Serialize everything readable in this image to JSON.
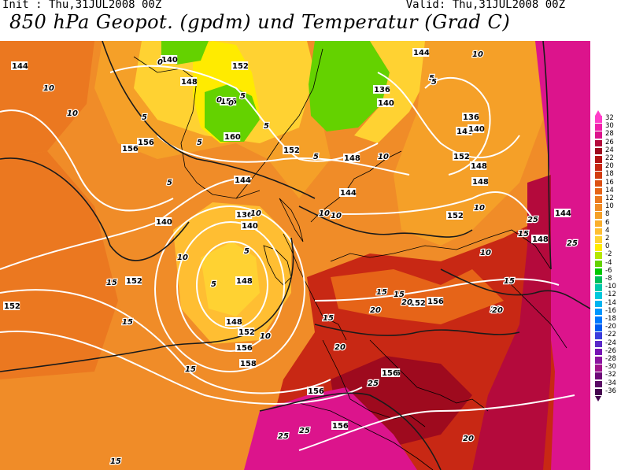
{
  "header": {
    "init": "Init : Thu,31JUL2008 00Z",
    "valid": "Valid: Thu,31JUL2008 00Z",
    "title": "850 hPa Geopot. (gpdm) und Temperatur (Grad C)"
  },
  "map": {
    "geopotential_labels": [
      "144",
      "140",
      "148",
      "152",
      "156",
      "160",
      "136",
      "140",
      "144",
      "148",
      "152",
      "156",
      "156",
      "152",
      "148",
      "144",
      "140",
      "136",
      "140",
      "144",
      "148",
      "152",
      "156",
      "158",
      "156",
      "156",
      "152",
      "148",
      "140",
      "152",
      "148",
      "136",
      "140",
      "144",
      "148",
      "152",
      "152",
      "156",
      "156",
      "156"
    ],
    "temperature_labels": [
      "10",
      "10",
      "5",
      "0",
      "5",
      "0",
      "5",
      "10",
      "5",
      "5",
      "10",
      "10",
      "10",
      "5",
      "5",
      "10",
      "10",
      "5",
      "10",
      "15",
      "15",
      "15",
      "15",
      "15",
      "20",
      "20",
      "25",
      "25",
      "25",
      "10",
      "15",
      "15",
      "20",
      "20",
      "15",
      "25",
      "25",
      "20",
      "15",
      "20",
      "10",
      "5",
      "5",
      "0"
    ]
  },
  "legend": {
    "values": [
      "32",
      "30",
      "28",
      "26",
      "24",
      "22",
      "20",
      "18",
      "16",
      "14",
      "12",
      "10",
      "8",
      "6",
      "4",
      "2",
      "0",
      "-2",
      "-4",
      "-6",
      "-8",
      "-10",
      "-12",
      "-14",
      "-16",
      "-18",
      "-20",
      "-22",
      "-24",
      "-26",
      "-28",
      "-30",
      "-32",
      "-34",
      "-36"
    ],
    "colors": [
      "#ff3cc8",
      "#f01eaa",
      "#dc148c",
      "#b40a3c",
      "#9e0a1e",
      "#b41414",
      "#c82814",
      "#d23c10",
      "#dc5014",
      "#e66418",
      "#eb7820",
      "#f08c28",
      "#f5a028",
      "#faaf2d",
      "#ffbe32",
      "#ffd232",
      "#ffeb00",
      "#b4e600",
      "#64d200",
      "#00c800",
      "#00be5a",
      "#00c8aa",
      "#00c8dc",
      "#00b4f0",
      "#0096ff",
      "#0078ff",
      "#005af0",
      "#3c3cdc",
      "#5a28c8",
      "#7814b4",
      "#8c14a0",
      "#a0148c",
      "#6e0a78",
      "#5a0a64",
      "#460550"
    ]
  }
}
